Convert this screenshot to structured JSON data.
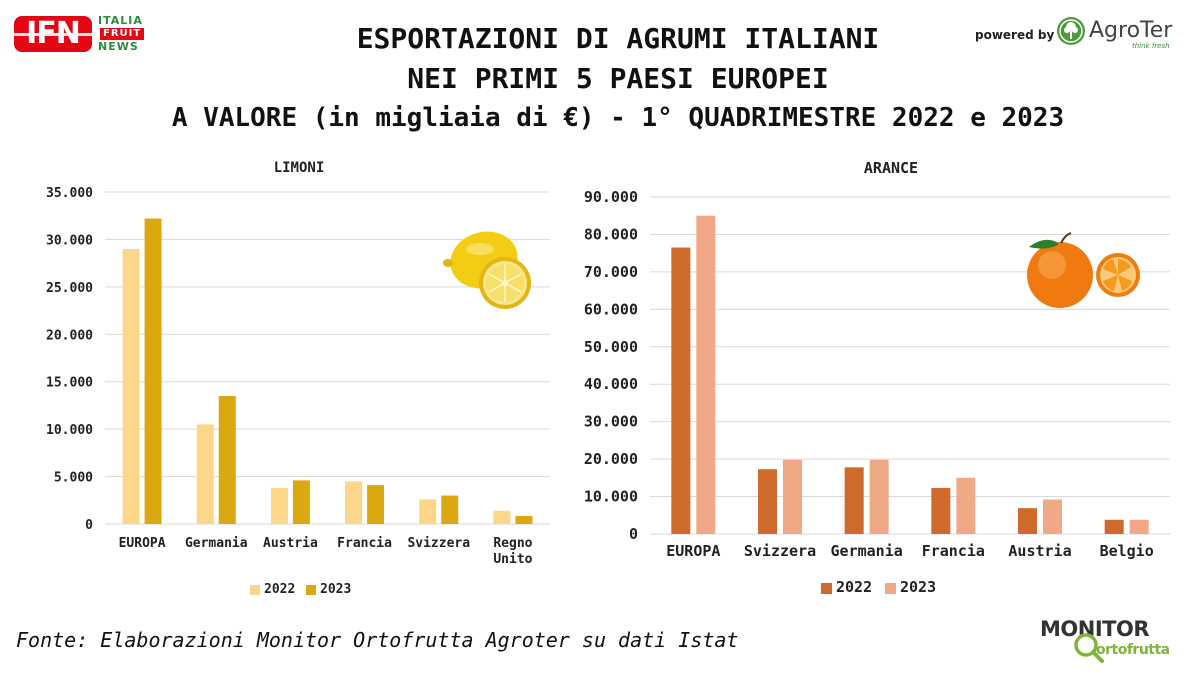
{
  "header": {
    "title_line1": "ESPORTAZIONI DI AGRUMI ITALIANI",
    "title_line2": "NEI PRIMI 5 PAESI EUROPEI",
    "title_line3": "A VALORE (in migliaia di €) - 1° QUADRIMESTRE 2022 e 2023"
  },
  "logos": {
    "ifn_badge": "IFN",
    "ifn_italia": "ITALIA",
    "ifn_fruit": "FRUIT",
    "ifn_news": "NEWS",
    "powered_by": "powered by",
    "agroter_name": "AgroTer",
    "agroter_tagline": "think fresh",
    "monitor_top": "MONITOR",
    "monitor_bottom": "ortofrutta"
  },
  "source": "Fonte: Elaborazioni Monitor Ortofrutta Agroter su dati Istat",
  "colors": {
    "limoni_2022": "#fcd689",
    "limoni_2023": "#dba812",
    "arance_2022": "#cf6a2c",
    "arance_2023": "#f1a886",
    "grid": "#d9d9d9"
  },
  "icons": {
    "limoni": "lemon-icon",
    "arance": "orange-icon"
  },
  "chart_data": [
    {
      "type": "bar",
      "title": "LIMONI",
      "categories": [
        "EUROPA",
        "Germania",
        "Austria",
        "Francia",
        "Svizzera",
        "Regno Unito"
      ],
      "series": [
        {
          "name": "2022",
          "values": [
            29000,
            10500,
            3800,
            4500,
            2600,
            1400
          ]
        },
        {
          "name": "2023",
          "values": [
            32200,
            13500,
            4600,
            4100,
            3000,
            850
          ]
        }
      ],
      "ylim": [
        0,
        35000
      ],
      "yticks": [
        "0",
        "5.000",
        "10.000",
        "15.000",
        "20.000",
        "25.000",
        "30.000",
        "35.000"
      ],
      "grid": true,
      "legend": "bottom"
    },
    {
      "type": "bar",
      "title": "ARANCE",
      "categories": [
        "EUROPA",
        "Svizzera",
        "Germania",
        "Francia",
        "Austria",
        "Belgio"
      ],
      "series": [
        {
          "name": "2022",
          "values": [
            76500,
            17300,
            17800,
            12300,
            6900,
            3800
          ]
        },
        {
          "name": "2023",
          "values": [
            85000,
            19800,
            19800,
            15000,
            9200,
            3800
          ]
        }
      ],
      "ylim": [
        0,
        90000
      ],
      "yticks": [
        "0",
        "10.000",
        "20.000",
        "30.000",
        "40.000",
        "50.000",
        "60.000",
        "70.000",
        "80.000",
        "90.000"
      ],
      "grid": true,
      "legend": "bottom"
    }
  ]
}
